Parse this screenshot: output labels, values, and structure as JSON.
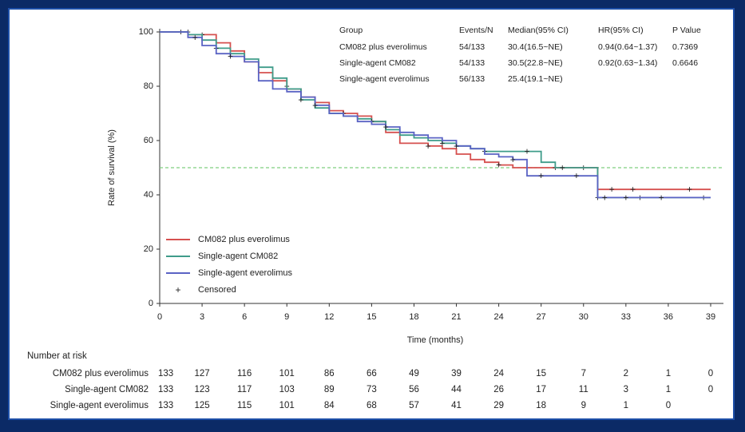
{
  "colors": {
    "background": "#0b2a66",
    "panel": "#ffffff",
    "frame": "#1d4fa8",
    "series": [
      "#d6504f",
      "#3f9c8a",
      "#5a63c4"
    ],
    "reference_line": "#7fcf7f"
  },
  "chart_data": {
    "type": "line",
    "subtype": "kaplan-meier",
    "xlabel": "Time (months)",
    "ylabel": "Rate of survival (%)",
    "xlim": [
      0,
      39
    ],
    "ylim": [
      0,
      100
    ],
    "xticks": [
      0,
      3,
      6,
      9,
      12,
      15,
      18,
      21,
      24,
      27,
      30,
      33,
      36,
      39
    ],
    "yticks": [
      0,
      20,
      40,
      60,
      80,
      100
    ],
    "reference_line_y": 50,
    "legend_position": "bottom-left",
    "legend": [
      {
        "label": "CM082 plus everolimus",
        "kind": "line"
      },
      {
        "label": "Single-agent CM082",
        "kind": "line"
      },
      {
        "label": "Single-agent everolimus",
        "kind": "line"
      },
      {
        "label": "Censored",
        "kind": "marker"
      }
    ],
    "series": [
      {
        "name": "CM082 plus everolimus",
        "x": [
          0,
          1,
          2,
          3,
          4,
          5,
          6,
          7,
          8,
          9,
          10,
          11,
          12,
          13,
          14,
          15,
          16,
          17,
          18,
          19,
          20,
          21,
          22,
          23,
          24,
          25,
          26,
          27,
          28,
          29,
          30.5,
          31,
          33,
          35,
          37,
          39
        ],
        "y": [
          100,
          100,
          99,
          99,
          96,
          93,
          89,
          85,
          82,
          79,
          76,
          74,
          71,
          70,
          69,
          67,
          63,
          59,
          59,
          58,
          57,
          55,
          53,
          52,
          51,
          50,
          50,
          50,
          50,
          50,
          50,
          42,
          42,
          42,
          42,
          42
        ],
        "censored": [
          [
            2,
            100
          ],
          [
            3,
            99
          ],
          [
            9,
            80
          ],
          [
            13,
            70
          ],
          [
            19,
            58
          ],
          [
            24,
            51
          ],
          [
            28,
            50
          ],
          [
            30,
            50
          ],
          [
            32,
            42
          ],
          [
            33.5,
            42
          ],
          [
            37.5,
            42
          ]
        ]
      },
      {
        "name": "Single-agent CM082",
        "x": [
          0,
          1,
          2,
          3,
          4,
          5,
          6,
          7,
          8,
          9,
          10,
          11,
          12,
          13,
          14,
          15,
          16,
          17,
          18,
          19,
          20,
          21,
          22,
          23,
          24,
          25,
          26,
          27,
          28,
          29,
          30.5,
          31,
          33,
          35,
          37,
          39
        ],
        "y": [
          100,
          100,
          99,
          97,
          94,
          92,
          90,
          87,
          83,
          79,
          75,
          72,
          70,
          69,
          68,
          67,
          64,
          62,
          61,
          60,
          59,
          58,
          57,
          56,
          56,
          56,
          56,
          52,
          50,
          50,
          50,
          39,
          39,
          39,
          39,
          39
        ],
        "censored": [
          [
            1.5,
            100
          ],
          [
            4,
            94
          ],
          [
            10,
            75
          ],
          [
            15,
            67
          ],
          [
            20,
            59
          ],
          [
            23,
            56
          ],
          [
            26,
            56
          ],
          [
            28.5,
            50
          ],
          [
            31,
            39
          ],
          [
            34,
            39
          ],
          [
            38.5,
            39
          ]
        ]
      },
      {
        "name": "Single-agent everolimus",
        "x": [
          0,
          1,
          2,
          3,
          4,
          5,
          6,
          7,
          8,
          9,
          10,
          11,
          12,
          13,
          14,
          15,
          16,
          17,
          18,
          19,
          20,
          21,
          22,
          23,
          24,
          25,
          26,
          27,
          28,
          29,
          30.5,
          31,
          33,
          35,
          37,
          39
        ],
        "y": [
          100,
          100,
          98,
          95,
          92,
          91,
          89,
          82,
          79,
          78,
          76,
          73,
          70,
          69,
          67,
          66,
          65,
          63,
          62,
          61,
          60,
          58,
          57,
          55,
          54,
          53,
          47,
          47,
          47,
          47,
          47,
          39,
          39,
          39,
          39,
          39
        ],
        "censored": [
          [
            2.5,
            98
          ],
          [
            5,
            91
          ],
          [
            11,
            73
          ],
          [
            16,
            65
          ],
          [
            21,
            58
          ],
          [
            25,
            53
          ],
          [
            27,
            47
          ],
          [
            29.5,
            47
          ],
          [
            31.5,
            39
          ],
          [
            33,
            39
          ],
          [
            35.5,
            39
          ]
        ]
      }
    ]
  },
  "stats_table": {
    "headers": [
      "Group",
      "Events/N",
      "Median(95% CI)",
      "HR(95% CI)",
      "P Value"
    ],
    "rows": [
      [
        "CM082 plus everolimus",
        "54/133",
        "30.4(16.5~NE)",
        "0.94(0.64~1.37)",
        "0.7369"
      ],
      [
        "Single-agent CM082",
        "54/133",
        "30.5(22.8~NE)",
        "0.92(0.63~1.34)",
        "0.6646"
      ],
      [
        "Single-agent everolimus",
        "56/133",
        "25.4(19.1~NE)",
        "",
        ""
      ]
    ]
  },
  "risk_table": {
    "title": "Number at risk",
    "rows": [
      {
        "label": "CM082 plus everolimus",
        "values": [
          "133",
          "127",
          "116",
          "101",
          "86",
          "66",
          "49",
          "39",
          "24",
          "15",
          "7",
          "2",
          "1",
          "0"
        ]
      },
      {
        "label": "Single-agent CM082",
        "values": [
          "133",
          "123",
          "117",
          "103",
          "89",
          "73",
          "56",
          "44",
          "26",
          "17",
          "11",
          "3",
          "1",
          "0"
        ]
      },
      {
        "label": "Single-agent everolimus",
        "values": [
          "133",
          "125",
          "115",
          "101",
          "84",
          "68",
          "57",
          "41",
          "29",
          "18",
          "9",
          "1",
          "0",
          ""
        ]
      }
    ]
  }
}
